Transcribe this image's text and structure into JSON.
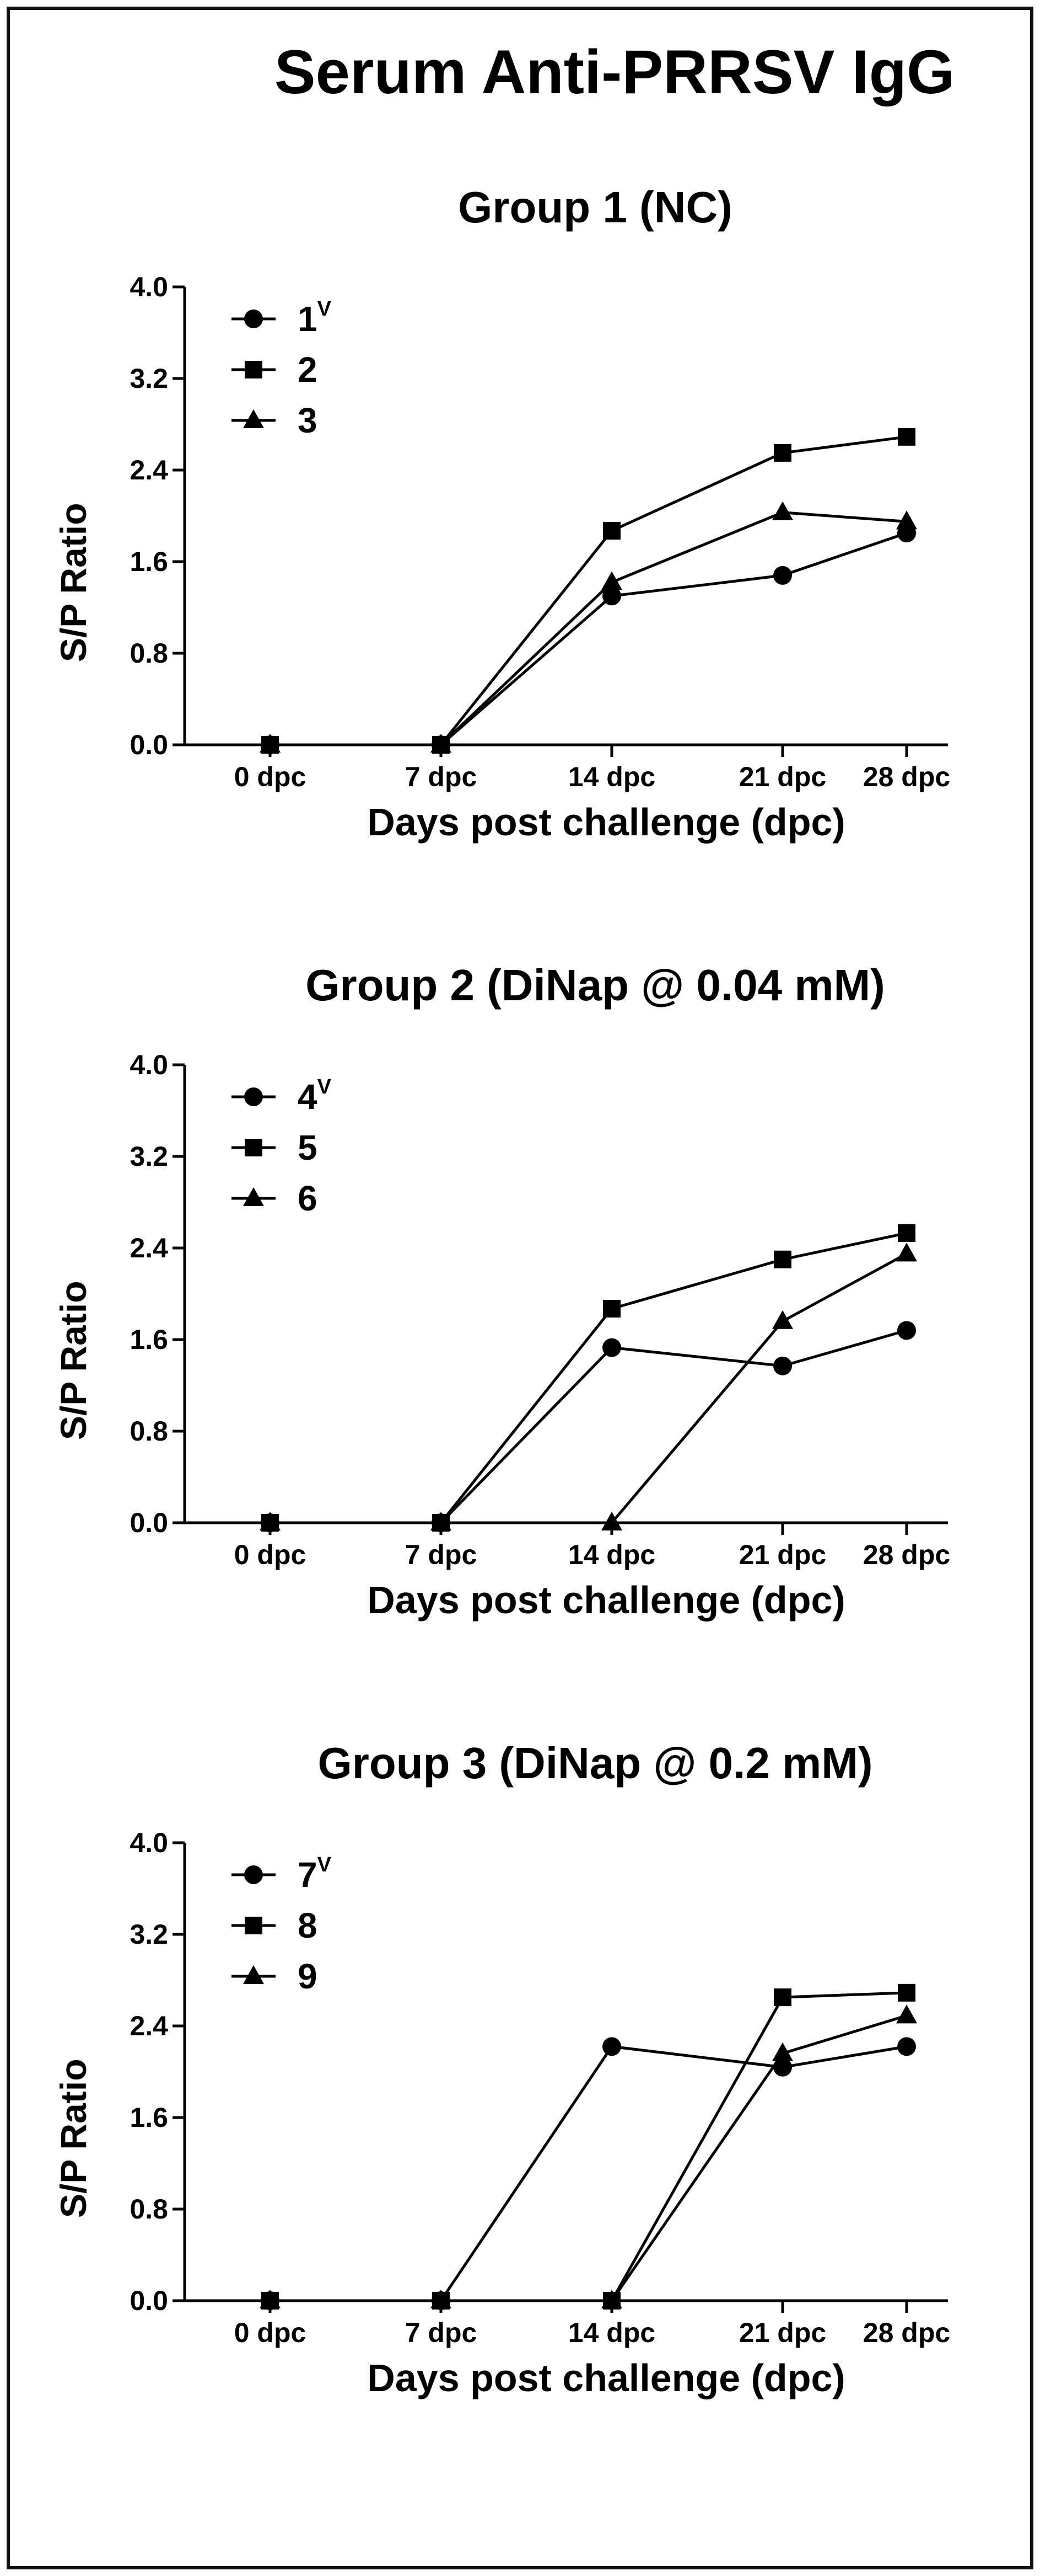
{
  "title": "Serum Anti-PRRSV IgG",
  "chart_data": [
    {
      "type": "line",
      "title": "Group 1 (NC)",
      "xlabel": "Days post challenge (dpc)",
      "ylabel": "S/P Ratio",
      "categories": [
        "0 dpc",
        "7 dpc",
        "14 dpc",
        "21 dpc",
        "28 dpc"
      ],
      "ylim": [
        0.0,
        4.0
      ],
      "yticks": [
        "0.0",
        "0.8",
        "1.6",
        "2.4",
        "3.2",
        "4.0"
      ],
      "legend_position": "top-left",
      "series": [
        {
          "name": "1",
          "sup": "V",
          "marker": "circle",
          "values": [
            0,
            0,
            1.3,
            1.48,
            1.85
          ]
        },
        {
          "name": "2",
          "sup": "",
          "marker": "square",
          "values": [
            0,
            0,
            1.87,
            2.55,
            2.69
          ]
        },
        {
          "name": "3",
          "sup": "",
          "marker": "triangle",
          "values": [
            0,
            0,
            1.42,
            2.03,
            1.95
          ]
        }
      ]
    },
    {
      "type": "line",
      "title": "Group 2 (DiNap @ 0.04 mM)",
      "xlabel": "Days post challenge (dpc)",
      "ylabel": "S/P Ratio",
      "categories": [
        "0 dpc",
        "7 dpc",
        "14 dpc",
        "21 dpc",
        "28 dpc"
      ],
      "ylim": [
        0.0,
        4.0
      ],
      "yticks": [
        "0.0",
        "0.8",
        "1.6",
        "2.4",
        "3.2",
        "4.0"
      ],
      "legend_position": "top-left",
      "series": [
        {
          "name": "4",
          "sup": "V",
          "marker": "circle",
          "values": [
            0,
            0,
            1.53,
            1.37,
            1.68
          ]
        },
        {
          "name": "5",
          "sup": "",
          "marker": "square",
          "values": [
            0,
            0,
            1.87,
            2.3,
            2.53
          ]
        },
        {
          "name": "6",
          "sup": "",
          "marker": "triangle",
          "values": [
            0,
            0,
            0,
            1.76,
            2.35
          ]
        }
      ]
    },
    {
      "type": "line",
      "title": "Group 3 (DiNap @ 0.2 mM)",
      "xlabel": "Days post challenge (dpc)",
      "ylabel": "S/P Ratio",
      "categories": [
        "0 dpc",
        "7 dpc",
        "14 dpc",
        "21 dpc",
        "28 dpc"
      ],
      "ylim": [
        0.0,
        4.0
      ],
      "yticks": [
        "0.0",
        "0.8",
        "1.6",
        "2.4",
        "3.2",
        "4.0"
      ],
      "legend_position": "top-left",
      "series": [
        {
          "name": "7",
          "sup": "V",
          "marker": "circle",
          "values": [
            0,
            0,
            2.22,
            2.04,
            2.22
          ]
        },
        {
          "name": "8",
          "sup": "",
          "marker": "square",
          "values": [
            0,
            0,
            0,
            2.65,
            2.69
          ]
        },
        {
          "name": "9",
          "sup": "",
          "marker": "triangle",
          "values": [
            0,
            0,
            0,
            2.16,
            2.49
          ]
        }
      ]
    }
  ]
}
